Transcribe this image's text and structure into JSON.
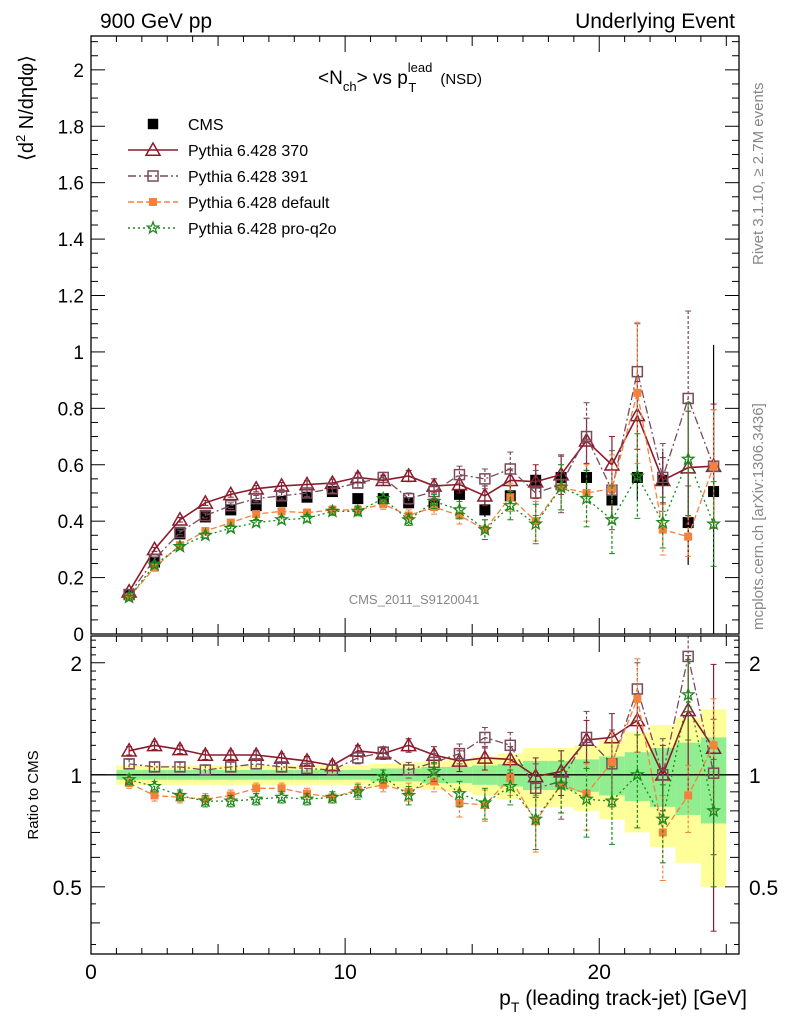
{
  "header": {
    "left": "900 GeV pp",
    "right": "Underlying Event"
  },
  "side": {
    "rivet": "Rivet 3.1.10, ≥ 2.7M events",
    "mcplots": "mcplots.cern.ch [arXiv:1306.3436]"
  },
  "watermark": "CMS_2011_S9120041",
  "chart_data": {
    "type": "scatter",
    "title_parts": {
      "a": "<N",
      "a_sub": "ch",
      "b": "> vs p",
      "b_sup": "lead",
      "b_sub": "T",
      "c": "(NSD)"
    },
    "ylabel_parts": {
      "a": "⟨d",
      "sup": "2",
      "b": " N/dηdφ⟩"
    },
    "xlabel_parts": {
      "a": "p",
      "sub": "T",
      "b": " (leading track-jet) [GeV]"
    },
    "ratio_ylabel": "Ratio to CMS",
    "xlim": [
      0,
      25.5
    ],
    "ylim_main": [
      0,
      2.12
    ],
    "ylim_ratio": [
      0.33,
      2.36
    ],
    "ratio_log": true,
    "main_ticks": [
      "0",
      "0.2",
      "0.4",
      "0.6",
      "0.8",
      "1",
      "1.2",
      "1.4",
      "1.6",
      "1.8",
      "2"
    ],
    "ratio_ticks": [
      "0.5",
      "1",
      "2"
    ],
    "x_ticks": [
      "0",
      "10",
      "20"
    ],
    "x": [
      1.5,
      2.5,
      3.5,
      4.5,
      5.5,
      6.5,
      7.5,
      8.5,
      9.5,
      10.5,
      11.5,
      12.5,
      13.5,
      14.5,
      15.5,
      16.5,
      17.5,
      18.5,
      19.5,
      20.5,
      21.5,
      22.5,
      23.5,
      24.5
    ],
    "cms": {
      "name": "CMS",
      "color": "#000000",
      "values": [
        0.14,
        0.255,
        0.355,
        0.415,
        0.44,
        0.455,
        0.47,
        0.485,
        0.505,
        0.48,
        0.48,
        0.465,
        0.46,
        0.495,
        0.44,
        0.49,
        0.545,
        0.555,
        0.555,
        0.475,
        0.555,
        0.545,
        0.395,
        0.505
      ],
      "errors": [
        0.005,
        0.005,
        0.006,
        0.007,
        0.008,
        0.009,
        0.01,
        0.011,
        0.012,
        0.013,
        0.015,
        0.017,
        0.02,
        0.022,
        0.025,
        0.03,
        0.035,
        0.04,
        0.05,
        0.06,
        0.08,
        0.1,
        0.15,
        0.52
      ]
    },
    "series": [
      {
        "name": "Pythia 6.428 370",
        "color": "#8b1a2b",
        "dash": "",
        "marker": "triangle",
        "connect": "steps",
        "values": [
          0.15,
          0.3,
          0.405,
          0.465,
          0.495,
          0.515,
          0.525,
          0.53,
          0.535,
          0.555,
          0.545,
          0.56,
          0.525,
          0.53,
          0.49,
          0.545,
          0.54,
          0.565,
          0.685,
          0.6,
          0.775,
          0.545,
          0.59,
          0.595
        ],
        "errors": [
          0.006,
          0.007,
          0.008,
          0.009,
          0.01,
          0.011,
          0.012,
          0.013,
          0.014,
          0.016,
          0.018,
          0.02,
          0.025,
          0.03,
          0.035,
          0.04,
          0.06,
          0.07,
          0.08,
          0.1,
          0.12,
          0.08,
          0.2,
          0.22
        ],
        "ratio": [
          1.16,
          1.2,
          1.17,
          1.13,
          1.13,
          1.13,
          1.11,
          1.09,
          1.06,
          1.16,
          1.14,
          1.2,
          1.13,
          1.09,
          1.11,
          1.1,
          0.99,
          1.02,
          1.24,
          1.26,
          1.4,
          1.0,
          1.49,
          1.18
        ],
        "ratio_err": [
          0.03,
          0.03,
          0.03,
          0.03,
          0.03,
          0.03,
          0.03,
          0.03,
          0.03,
          0.04,
          0.04,
          0.05,
          0.06,
          0.07,
          0.08,
          0.09,
          0.12,
          0.14,
          0.16,
          0.2,
          0.25,
          0.2,
          0.6,
          0.8
        ]
      },
      {
        "name": "Pythia 6.428 391",
        "color": "#7a4a5a",
        "dash": "8 3 2 3",
        "marker": "square",
        "connect": "line",
        "values": [
          0.14,
          0.265,
          0.36,
          0.42,
          0.455,
          0.48,
          0.49,
          0.5,
          0.515,
          0.535,
          0.555,
          0.48,
          0.505,
          0.565,
          0.55,
          0.585,
          0.5,
          0.53,
          0.7,
          0.51,
          0.93,
          0.555,
          0.835,
          0.595
        ],
        "errors": [
          0.006,
          0.007,
          0.008,
          0.009,
          0.01,
          0.011,
          0.012,
          0.013,
          0.014,
          0.016,
          0.018,
          0.02,
          0.025,
          0.03,
          0.035,
          0.06,
          0.08,
          0.1,
          0.12,
          0.14,
          0.17,
          0.12,
          0.31,
          0.2
        ],
        "ratio": [
          1.07,
          1.05,
          1.05,
          1.03,
          1.05,
          1.07,
          1.05,
          1.04,
          1.03,
          1.11,
          1.15,
          1.03,
          1.08,
          1.14,
          1.26,
          1.2,
          0.92,
          0.96,
          1.26,
          1.07,
          1.7,
          1.0,
          2.08,
          1.01
        ],
        "ratio_err": [
          0.03,
          0.03,
          0.03,
          0.03,
          0.03,
          0.03,
          0.03,
          0.03,
          0.03,
          0.04,
          0.04,
          0.05,
          0.06,
          0.07,
          0.08,
          0.1,
          0.15,
          0.2,
          0.22,
          0.25,
          0.3,
          0.25,
          0.6,
          0.4
        ]
      },
      {
        "name": "Pythia 6.428 default",
        "color": "#f5823c",
        "dash": "6 3",
        "marker": "fsquare",
        "connect": "line",
        "values": [
          0.13,
          0.235,
          0.315,
          0.365,
          0.395,
          0.425,
          0.435,
          0.43,
          0.44,
          0.44,
          0.46,
          0.42,
          0.45,
          0.42,
          0.37,
          0.485,
          0.4,
          0.52,
          0.5,
          0.515,
          0.855,
          0.37,
          0.345,
          0.595
        ],
        "errors": [
          0.006,
          0.007,
          0.008,
          0.009,
          0.01,
          0.011,
          0.012,
          0.013,
          0.014,
          0.016,
          0.018,
          0.02,
          0.025,
          0.03,
          0.035,
          0.05,
          0.07,
          0.08,
          0.1,
          0.12,
          0.25,
          0.09,
          0.07,
          0.2
        ],
        "ratio": [
          0.95,
          0.88,
          0.87,
          0.86,
          0.88,
          0.92,
          0.92,
          0.89,
          0.87,
          0.91,
          0.94,
          0.9,
          0.96,
          0.84,
          0.83,
          0.98,
          0.75,
          0.94,
          0.89,
          1.08,
          1.6,
          0.7,
          0.88,
          1.2
        ],
        "ratio_err": [
          0.03,
          0.03,
          0.03,
          0.03,
          0.03,
          0.03,
          0.03,
          0.03,
          0.03,
          0.04,
          0.04,
          0.05,
          0.06,
          0.07,
          0.08,
          0.1,
          0.13,
          0.15,
          0.18,
          0.22,
          0.45,
          0.18,
          0.18,
          0.4
        ]
      },
      {
        "name": "Pythia 6.428 pro-q2o",
        "color": "#1a8a1a",
        "dash": "2 3",
        "marker": "star",
        "connect": "line",
        "values": [
          0.13,
          0.245,
          0.31,
          0.35,
          0.375,
          0.395,
          0.405,
          0.41,
          0.435,
          0.435,
          0.48,
          0.405,
          0.47,
          0.44,
          0.37,
          0.455,
          0.39,
          0.52,
          0.48,
          0.405,
          0.56,
          0.395,
          0.62,
          0.39
        ],
        "errors": [
          0.006,
          0.007,
          0.008,
          0.009,
          0.01,
          0.011,
          0.012,
          0.013,
          0.014,
          0.016,
          0.018,
          0.02,
          0.025,
          0.03,
          0.035,
          0.05,
          0.07,
          0.08,
          0.1,
          0.12,
          0.15,
          0.09,
          0.2,
          0.15
        ],
        "ratio": [
          0.97,
          0.93,
          0.88,
          0.85,
          0.85,
          0.86,
          0.87,
          0.86,
          0.87,
          0.9,
          0.99,
          0.88,
          1.02,
          0.89,
          0.84,
          0.93,
          0.76,
          0.94,
          0.86,
          0.85,
          1.0,
          0.76,
          1.64,
          0.8
        ],
        "ratio_err": [
          0.03,
          0.03,
          0.03,
          0.03,
          0.03,
          0.03,
          0.03,
          0.03,
          0.03,
          0.04,
          0.04,
          0.05,
          0.06,
          0.07,
          0.08,
          0.1,
          0.13,
          0.15,
          0.18,
          0.2,
          0.28,
          0.18,
          0.4,
          0.3
        ]
      }
    ],
    "bands": {
      "green_color": "#90ee90",
      "yellow_color": "#ffff99",
      "inner": [
        0.03,
        0.03,
        0.03,
        0.03,
        0.03,
        0.03,
        0.03,
        0.03,
        0.03,
        0.03,
        0.04,
        0.04,
        0.05,
        0.05,
        0.06,
        0.07,
        0.09,
        0.09,
        0.1,
        0.12,
        0.15,
        0.18,
        0.22,
        0.26
      ],
      "outer": [
        0.06,
        0.06,
        0.06,
        0.06,
        0.06,
        0.06,
        0.06,
        0.06,
        0.06,
        0.06,
        0.07,
        0.08,
        0.09,
        0.1,
        0.12,
        0.14,
        0.18,
        0.18,
        0.2,
        0.24,
        0.3,
        0.36,
        0.42,
        0.5
      ]
    }
  }
}
